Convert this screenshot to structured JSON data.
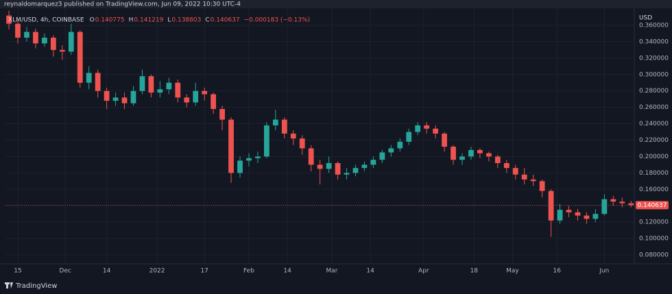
{
  "header": {
    "publisher": "reynaldomarquez3 published on TradingView.com, Jun 09, 2022 10:30 UTC-4"
  },
  "footer": {
    "brand": "TradingView"
  },
  "chart_data": {
    "type": "candlestick",
    "symbol": "XLM/USD, 4h, COINBASE",
    "ohlc_legend": [
      {
        "key": "O",
        "text": "0.140775"
      },
      {
        "key": "H",
        "text": "0.141219"
      },
      {
        "key": "L",
        "text": "0.138803"
      },
      {
        "key": "C",
        "text": "0.140637"
      }
    ],
    "change": "−0.000183 (−0.13%)",
    "y_axis_label": "USD",
    "up_color": "#26a69a",
    "down_color": "#ef5350",
    "grid": true,
    "xlim": [
      -4.17,
      208.1
    ],
    "xticks": [
      {
        "value": 0,
        "label": "15"
      },
      {
        "value": 16,
        "label": "Dec"
      },
      {
        "value": 30,
        "label": "14"
      },
      {
        "value": 47,
        "label": "2022"
      },
      {
        "value": 63,
        "label": "17"
      },
      {
        "value": 78,
        "label": "Feb"
      },
      {
        "value": 91,
        "label": "14"
      },
      {
        "value": 106,
        "label": "Mar"
      },
      {
        "value": 119,
        "label": "14"
      },
      {
        "value": 137,
        "label": "Apr"
      },
      {
        "value": 154,
        "label": "18"
      },
      {
        "value": 167,
        "label": "May"
      },
      {
        "value": 182,
        "label": "16"
      },
      {
        "value": 198,
        "label": "Jun"
      }
    ],
    "ylim": [
      0.0691,
      0.3784
    ],
    "yticks": [
      {
        "value": 0.08,
        "label": "0.080000"
      },
      {
        "value": 0.1,
        "label": "0.100000"
      },
      {
        "value": 0.12,
        "label": "0.120000"
      },
      {
        "value": 0.14,
        "label": "0.140000"
      },
      {
        "value": 0.16,
        "label": "0.160000"
      },
      {
        "value": 0.18,
        "label": "0.180000"
      },
      {
        "value": 0.2,
        "label": "0.200000"
      },
      {
        "value": 0.22,
        "label": "0.220000"
      },
      {
        "value": 0.24,
        "label": "0.240000"
      },
      {
        "value": 0.26,
        "label": "0.260000"
      },
      {
        "value": 0.28,
        "label": "0.280000"
      },
      {
        "value": 0.3,
        "label": "0.300000"
      },
      {
        "value": 0.32,
        "label": "0.320000"
      },
      {
        "value": 0.34,
        "label": "0.340000"
      },
      {
        "value": 0.36,
        "label": "0.360000"
      }
    ],
    "last_price": 0.140637,
    "x": [
      -3,
      0,
      3,
      6,
      9,
      12,
      15,
      18,
      21,
      24,
      27,
      30,
      33,
      36,
      39,
      42,
      45,
      48,
      51,
      54,
      57,
      60,
      63,
      66,
      69,
      72,
      75,
      78,
      81,
      84,
      87,
      90,
      93,
      96,
      99,
      102,
      105,
      108,
      111,
      114,
      117,
      120,
      123,
      126,
      129,
      132,
      135,
      138,
      141,
      144,
      147,
      150,
      153,
      156,
      159,
      162,
      165,
      168,
      171,
      174,
      177,
      180,
      183,
      186,
      189,
      192,
      195,
      198,
      201,
      204,
      207
    ],
    "open": [
      0.372,
      0.362,
      0.345,
      0.352,
      0.338,
      0.345,
      0.33,
      0.328,
      0.352,
      0.29,
      0.302,
      0.28,
      0.268,
      0.272,
      0.265,
      0.28,
      0.298,
      0.278,
      0.282,
      0.29,
      0.272,
      0.266,
      0.28,
      0.276,
      0.258,
      0.245,
      0.18,
      0.195,
      0.198,
      0.2,
      0.238,
      0.245,
      0.228,
      0.222,
      0.21,
      0.19,
      0.185,
      0.192,
      0.178,
      0.18,
      0.186,
      0.19,
      0.196,
      0.205,
      0.21,
      0.218,
      0.23,
      0.238,
      0.234,
      0.228,
      0.212,
      0.196,
      0.2,
      0.208,
      0.204,
      0.2,
      0.192,
      0.186,
      0.178,
      0.172,
      0.17,
      0.158,
      0.122,
      0.135,
      0.132,
      0.128,
      0.124,
      0.13,
      0.148,
      0.145,
      0.143
    ],
    "high": [
      0.378,
      0.366,
      0.358,
      0.356,
      0.35,
      0.348,
      0.336,
      0.362,
      0.354,
      0.31,
      0.306,
      0.284,
      0.278,
      0.278,
      0.286,
      0.306,
      0.3,
      0.292,
      0.296,
      0.294,
      0.276,
      0.29,
      0.284,
      0.278,
      0.262,
      0.248,
      0.2,
      0.204,
      0.206,
      0.242,
      0.257,
      0.248,
      0.232,
      0.226,
      0.214,
      0.196,
      0.2,
      0.194,
      0.186,
      0.19,
      0.194,
      0.2,
      0.208,
      0.214,
      0.222,
      0.234,
      0.242,
      0.242,
      0.238,
      0.23,
      0.214,
      0.204,
      0.212,
      0.21,
      0.206,
      0.202,
      0.196,
      0.19,
      0.186,
      0.178,
      0.172,
      0.16,
      0.142,
      0.14,
      0.136,
      0.132,
      0.136,
      0.154,
      0.152,
      0.15,
      0.146
    ],
    "low": [
      0.355,
      0.338,
      0.34,
      0.332,
      0.334,
      0.322,
      0.318,
      0.324,
      0.284,
      0.282,
      0.272,
      0.258,
      0.262,
      0.258,
      0.262,
      0.276,
      0.272,
      0.272,
      0.276,
      0.266,
      0.26,
      0.262,
      0.268,
      0.252,
      0.232,
      0.168,
      0.174,
      0.188,
      0.192,
      0.198,
      0.232,
      0.222,
      0.214,
      0.202,
      0.182,
      0.166,
      0.18,
      0.172,
      0.172,
      0.176,
      0.182,
      0.186,
      0.192,
      0.2,
      0.206,
      0.214,
      0.226,
      0.228,
      0.222,
      0.206,
      0.19,
      0.19,
      0.196,
      0.198,
      0.194,
      0.186,
      0.18,
      0.172,
      0.166,
      0.164,
      0.15,
      0.102,
      0.118,
      0.126,
      0.122,
      0.118,
      0.12,
      0.128,
      0.14,
      0.138,
      0.138
    ],
    "close": [
      0.362,
      0.345,
      0.352,
      0.338,
      0.345,
      0.33,
      0.328,
      0.352,
      0.29,
      0.302,
      0.28,
      0.268,
      0.272,
      0.265,
      0.28,
      0.298,
      0.278,
      0.282,
      0.29,
      0.272,
      0.266,
      0.28,
      0.276,
      0.258,
      0.245,
      0.18,
      0.195,
      0.198,
      0.2,
      0.238,
      0.245,
      0.228,
      0.222,
      0.21,
      0.19,
      0.185,
      0.192,
      0.178,
      0.18,
      0.186,
      0.19,
      0.196,
      0.205,
      0.21,
      0.218,
      0.23,
      0.238,
      0.234,
      0.228,
      0.212,
      0.196,
      0.2,
      0.208,
      0.204,
      0.2,
      0.192,
      0.186,
      0.178,
      0.172,
      0.17,
      0.158,
      0.122,
      0.135,
      0.132,
      0.128,
      0.124,
      0.13,
      0.148,
      0.145,
      0.143,
      0.140637
    ]
  }
}
